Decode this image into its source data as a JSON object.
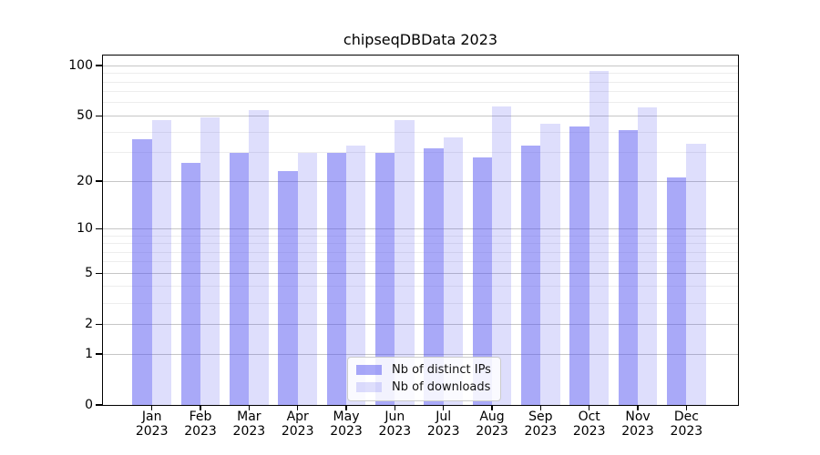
{
  "title": "chipseqDBData 2023",
  "chart_data": {
    "type": "bar",
    "title": "chipseqDBData 2023",
    "categories": [
      "Jan",
      "Feb",
      "Mar",
      "Apr",
      "May",
      "Jun",
      "Jul",
      "Aug",
      "Sep",
      "Oct",
      "Nov",
      "Dec"
    ],
    "x_year": "2023",
    "series": [
      {
        "name": "Nb of distinct IPs",
        "color": "rgba(80,80,240,0.49)",
        "values": [
          36,
          26,
          30,
          23,
          30,
          30,
          32,
          28,
          33,
          43,
          41,
          21
        ]
      },
      {
        "name": "Nb of downloads",
        "color": "rgba(80,80,240,0.19)",
        "values": [
          47,
          49,
          54,
          30,
          33,
          47,
          37,
          57,
          45,
          93,
          56,
          34
        ]
      }
    ],
    "yscale": "log1p",
    "yticks": [
      0,
      1,
      2,
      5,
      10,
      20,
      50,
      100
    ],
    "yticks_minor": [
      3,
      4,
      6,
      7,
      8,
      9,
      30,
      40,
      60,
      70,
      80,
      90
    ],
    "ylim": [
      0,
      115
    ],
    "grid": true,
    "legend_position": "inside bottom-center"
  },
  "colors": {
    "grid_major": "#c6c6c6",
    "grid_minor": "#ededed",
    "spine": "#000000"
  }
}
